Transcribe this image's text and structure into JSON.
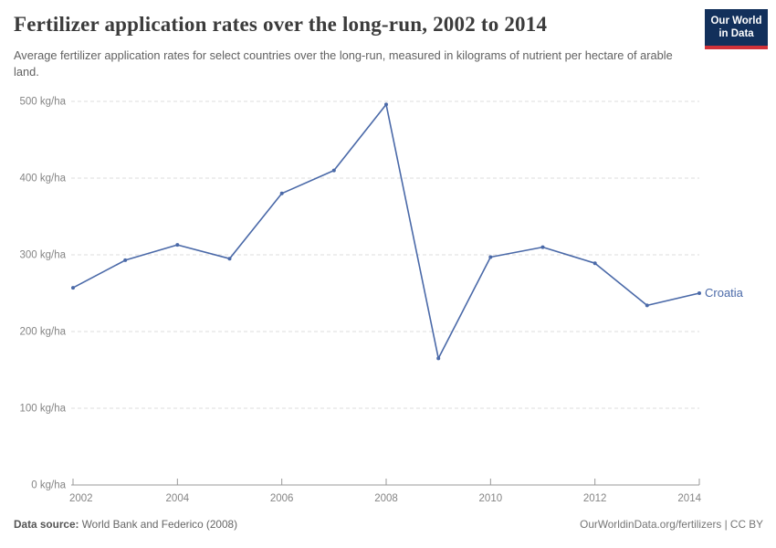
{
  "header": {
    "title": "Fertilizer application rates over the long-run, 2002 to 2014",
    "subtitle": "Average fertilizer application rates for select countries over the long-run, measured in kilograms of nutrient per hectare of arable land.",
    "logo": {
      "line1": "Our World",
      "line2": "in Data"
    }
  },
  "chart_data": {
    "type": "line",
    "title": "Fertilizer application rates over the long-run, 2002 to 2014",
    "x": [
      2002,
      2003,
      2004,
      2005,
      2006,
      2007,
      2008,
      2009,
      2010,
      2011,
      2012,
      2013,
      2014
    ],
    "series": [
      {
        "name": "Croatia",
        "color": "#4a69a8",
        "values": [
          257,
          293,
          313,
          295,
          380,
          410,
          496,
          165,
          297,
          310,
          289,
          234,
          250
        ]
      }
    ],
    "unit": "kg/ha",
    "ylim": [
      0,
      500
    ],
    "y_ticks": [
      0,
      100,
      200,
      300,
      400,
      500
    ],
    "y_tick_suffix": " kg/ha",
    "x_tick_labels": [
      "2002",
      "2004",
      "2006",
      "2008",
      "2010",
      "2012",
      "2014"
    ],
    "grid": "horizontal-dashed",
    "legend_position": "right-of-line"
  },
  "footer": {
    "datasource_label": "Data source:",
    "datasource_value": "World Bank and Federico (2008)",
    "right_text": "OurWorldinData.org/fertilizers | CC BY"
  },
  "colors": {
    "line": "#4a69a8",
    "grid": "#dedede",
    "axis": "#999999",
    "tick_label": "#858585",
    "title": "#3b3b3b",
    "subtitle": "#616161",
    "logo_bg": "#12305b",
    "logo_red": "#d13239"
  }
}
